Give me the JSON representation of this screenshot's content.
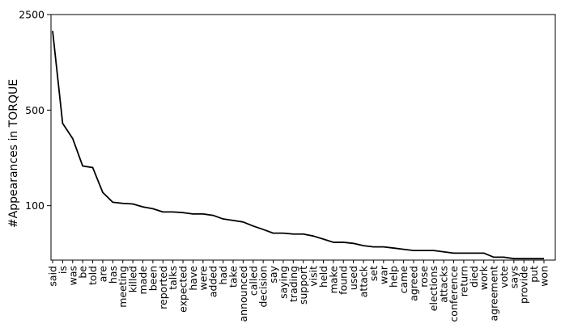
{
  "chart_data": {
    "type": "line",
    "ylabel": "#Appearances in TORQUE",
    "xlabel": "",
    "y_scale": "log",
    "ylim": [
      40,
      2500
    ],
    "y_ticks": [
      {
        "value": 100,
        "label": "100"
      },
      {
        "value": 500,
        "label": "500"
      },
      {
        "value": 2500,
        "label": "2500"
      }
    ],
    "grid": false,
    "line_color": "#000000",
    "categories": [
      "said",
      "is",
      "was",
      "be",
      "told",
      "are",
      "has",
      "meeting",
      "killed",
      "made",
      "been",
      "reported",
      "talks",
      "expected",
      "have",
      "were",
      "added",
      "had",
      "take",
      "announced",
      "called",
      "decision",
      "say",
      "saying",
      "trading",
      "support",
      "visit",
      "held",
      "make",
      "found",
      "used",
      "attack",
      "set",
      "war",
      "help",
      "came",
      "agreed",
      "rose",
      "elections",
      "attacks",
      "conference",
      "return",
      "died",
      "work",
      "agreement",
      "vote",
      "says",
      "provide",
      "put",
      "won"
    ],
    "values": [
      1900,
      400,
      310,
      195,
      190,
      125,
      106,
      104,
      103,
      98,
      95,
      90,
      90,
      89,
      87,
      87,
      85,
      80,
      78,
      76,
      71,
      67,
      63,
      63,
      62,
      62,
      60,
      57,
      54,
      54,
      53,
      51,
      50,
      50,
      49,
      48,
      47,
      47,
      47,
      46,
      45,
      45,
      45,
      45,
      42,
      42,
      41,
      41,
      41,
      41
    ]
  }
}
